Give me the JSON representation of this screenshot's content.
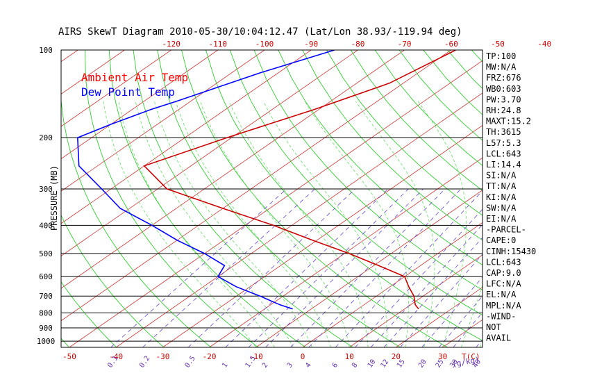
{
  "chart_data": {
    "type": "line",
    "title": "AIRS SkewT Diagram 2010-05-30/10:04:12.47 (Lat/Lon 38.93/-119.94 deg)",
    "ylabel": "PRESSURE (MB)",
    "ylim": [
      1050,
      100
    ],
    "y_scale": "log",
    "pressure_ticks": [
      "100",
      "200",
      "300",
      "400",
      "500",
      "600",
      "700",
      "800",
      "900",
      "1000"
    ],
    "pressure_tick_values": [
      100,
      200,
      300,
      400,
      500,
      600,
      700,
      800,
      900,
      1000
    ],
    "bottom_temp_ticks": [
      "-50",
      "-40",
      "-30",
      "-20",
      "-10",
      "0",
      "10",
      "20",
      "30"
    ],
    "bottom_temp_values": [
      -50,
      -40,
      -30,
      -20,
      -10,
      0,
      10,
      20,
      30
    ],
    "bottom_axis_label": "T(C)",
    "top_temp_ticks": [
      "-120",
      "-110",
      "-100",
      "-90",
      "-80",
      "-70",
      "-60",
      "-50",
      "-40"
    ],
    "top_temp_values": [
      -120,
      -110,
      -100,
      -90,
      -80,
      -70,
      -60,
      -50,
      -40
    ],
    "mixing_ratio_ticks": [
      "0.1",
      "0.2",
      "0.5",
      "1",
      "1.5",
      "2",
      "3",
      "4",
      "6",
      "8",
      "10",
      "12",
      "15",
      "20",
      "25",
      "30",
      "40"
    ],
    "mixing_ratio_values": [
      0.1,
      0.2,
      0.5,
      1,
      1.5,
      2,
      3,
      4,
      6,
      8,
      10,
      12,
      15,
      20,
      25,
      30,
      40
    ],
    "mixing_ratio_label": "(g/kg)",
    "legend": [
      {
        "name": "Ambient Air Temp",
        "color": "#ff0000"
      },
      {
        "name": "Dew Point Temp",
        "color": "#0000ff"
      }
    ],
    "series": [
      {
        "name": "Ambient Air Temp",
        "color": "#cc0000",
        "points": [
          {
            "p": 100,
            "t": -59
          },
          {
            "p": 130,
            "t": -63
          },
          {
            "p": 160,
            "t": -71
          },
          {
            "p": 200,
            "t": -81
          },
          {
            "p": 250,
            "t": -90
          },
          {
            "p": 300,
            "t": -78
          },
          {
            "p": 350,
            "t": -60
          },
          {
            "p": 400,
            "t": -44
          },
          {
            "p": 450,
            "t": -31
          },
          {
            "p": 500,
            "t": -19
          },
          {
            "p": 550,
            "t": -9
          },
          {
            "p": 600,
            "t": 0
          },
          {
            "p": 650,
            "t": 4
          },
          {
            "p": 700,
            "t": 8
          },
          {
            "p": 750,
            "t": 11
          },
          {
            "p": 775,
            "t": 13
          }
        ]
      },
      {
        "name": "Dew Point Temp",
        "color": "#0000ff",
        "points": [
          {
            "p": 100,
            "t": -85
          },
          {
            "p": 120,
            "t": -94
          },
          {
            "p": 150,
            "t": -103
          },
          {
            "p": 160,
            "t": -106
          },
          {
            "p": 180,
            "t": -110
          },
          {
            "p": 200,
            "t": -113
          },
          {
            "p": 250,
            "t": -104
          },
          {
            "p": 300,
            "t": -92
          },
          {
            "p": 350,
            "t": -82
          },
          {
            "p": 400,
            "t": -70
          },
          {
            "p": 450,
            "t": -60
          },
          {
            "p": 500,
            "t": -50
          },
          {
            "p": 550,
            "t": -42
          },
          {
            "p": 600,
            "t": -40
          },
          {
            "p": 650,
            "t": -33
          },
          {
            "p": 700,
            "t": -25
          },
          {
            "p": 750,
            "t": -18
          },
          {
            "p": 775,
            "t": -14
          }
        ]
      }
    ],
    "indices": [
      "TP:100",
      "MW:N/A",
      "FRZ:676",
      "WB0:603",
      "PW:3.70",
      "RH:24.8",
      "MAXT:15.2",
      "TH:3615",
      "L57:5.3",
      "LCL:643",
      "LI:14.4",
      "SI:N/A",
      "TT:N/A",
      "KI:N/A",
      "SW:N/A",
      "EI:N/A",
      "-PARCEL-",
      "CAPE:0",
      "CINH:15430",
      "LCL:643",
      "CAP:9.0",
      "LFC:N/A",
      "EL:N/A",
      "MPL:N/A",
      "-WIND-",
      "NOT",
      "AVAIL"
    ],
    "grid": true,
    "legend_placement": "top-left"
  },
  "colors": {
    "isotherm": "#cc3333",
    "dry_adiabat": "#33cc33",
    "moist_adiabat": "#66dd66",
    "mixing_ratio": "#6644cc",
    "isobar": "#000000",
    "tick_label_red": "#cc0000",
    "tick_label_purple": "#6633aa",
    "legend_red": "#ff0000",
    "legend_blue": "#0000ff"
  }
}
